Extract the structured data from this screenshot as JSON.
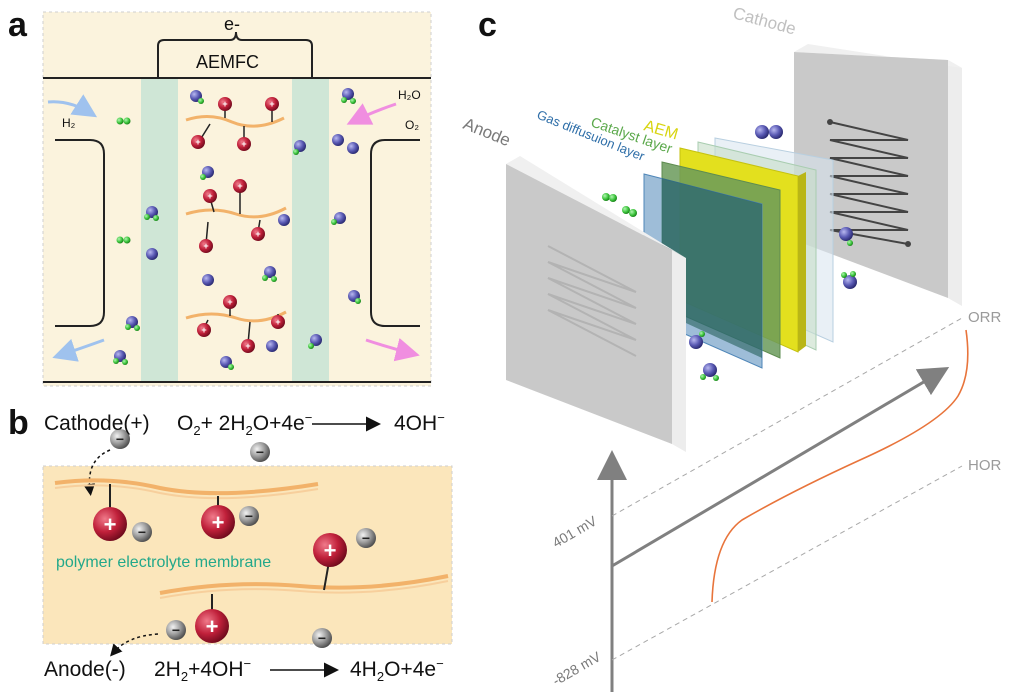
{
  "panel_a": {
    "letter": "a",
    "device": "AEMFC",
    "electron": "e-",
    "h2": "H₂",
    "h2o": "H₂O",
    "o2": "O₂"
  },
  "panel_b": {
    "letter": "b",
    "cathode_label": "Cathode(+)",
    "cathode_eq": {
      "a": "O",
      "a_sub": "2",
      "b": "+ 2H",
      "b_sub": "2",
      "c": "O+4e",
      "c_sup": "−",
      "product": "4OH",
      "product_sup": "−"
    },
    "membrane": "polymer electrolyte membrane",
    "anode_label": "Anode(-)",
    "anode_eq": {
      "a": "2H",
      "a_sub": "2",
      "b": "+4OH",
      "b_sup": "−",
      "product": "4H",
      "product_sub": "2",
      "product2": "O+4e",
      "product_sup": "−"
    },
    "plus": "+",
    "minus": "−"
  },
  "panel_c": {
    "letter": "c",
    "cathode": "Cathode",
    "anode": "Anode",
    "aem": "AEM",
    "catalyst": "Catalyst layer",
    "gdl": "Gas diffusuion layer",
    "orr": "ORR",
    "hor": "HOR",
    "v_high": "401 mV",
    "v_low": "-828 mV"
  },
  "colors": {
    "cream": "#fbf3dd",
    "membrane_green": "#cfe6d6",
    "proton_red": "#c0203a",
    "electron_blue": "#5a5ab4",
    "hydrogen_green": "#3cc43c",
    "chain_orange": "#f2b26a",
    "aem_yellow": "#e3e01e",
    "catalyst_green": "#7ab85c",
    "gdl_blue": "#4f86b8",
    "curve_orange": "#e8743b"
  }
}
